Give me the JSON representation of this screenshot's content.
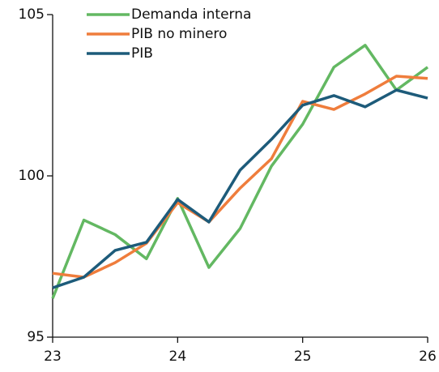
{
  "chart_data": {
    "type": "line",
    "x": [
      23,
      23.25,
      23.5,
      23.75,
      24,
      24.25,
      24.5,
      24.75,
      25,
      25.25,
      25.5,
      25.75,
      26
    ],
    "series": [
      {
        "name": "Demanda interna",
        "color": "#63b862",
        "values": [
          96.2,
          98.63,
          98.18,
          97.43,
          99.3,
          97.16,
          98.37,
          100.3,
          101.6,
          103.37,
          104.05,
          102.66,
          103.37
        ]
      },
      {
        "name": "PIB no minero",
        "color": "#ef7d3c",
        "values": [
          96.98,
          96.86,
          97.31,
          97.91,
          99.17,
          98.57,
          99.62,
          100.53,
          102.31,
          102.06,
          102.54,
          103.09,
          103.02
        ]
      },
      {
        "name": "PIB",
        "color": "#1d5b7a",
        "values": [
          96.53,
          96.86,
          97.69,
          97.94,
          99.27,
          98.57,
          100.18,
          101.13,
          102.19,
          102.49,
          102.14,
          102.66,
          102.41
        ]
      }
    ],
    "xlim": [
      23,
      26
    ],
    "xticks": [
      23,
      24,
      25,
      26
    ],
    "ylim": [
      95,
      105
    ],
    "yticks": [
      95,
      100,
      105
    ],
    "legend": "top-left"
  }
}
